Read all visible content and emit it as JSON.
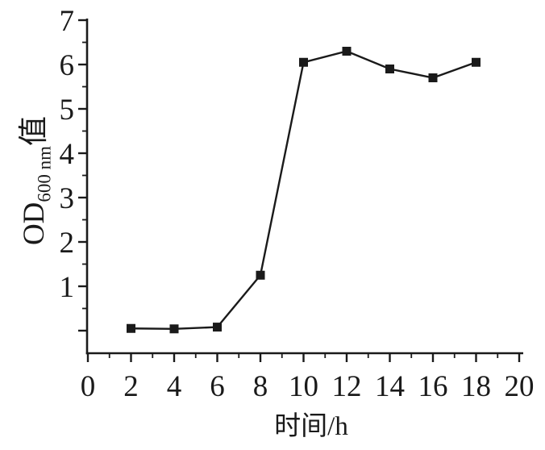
{
  "figure": {
    "background_color": "#ffffff",
    "ink_color": "#1a1a1a"
  },
  "y_axis": {
    "title_prefix": "OD",
    "title_subscript": "600 nm",
    "title_suffix": "值",
    "tick_labels": [
      "1",
      "2",
      "3",
      "4",
      "5",
      "6",
      "7"
    ]
  },
  "x_axis": {
    "title": "时间/h",
    "tick_labels": [
      "0",
      "2",
      "4",
      "6",
      "8",
      "10",
      "12",
      "14",
      "16",
      "18",
      "20"
    ]
  },
  "chart_data": {
    "type": "line",
    "title": "",
    "xlabel": "时间/h",
    "ylabel": "OD600 nm值",
    "x": [
      2,
      4,
      6,
      8,
      10,
      12,
      14,
      16,
      18
    ],
    "series": [
      {
        "name": "OD600 nm值",
        "values": [
          0.05,
          0.04,
          0.08,
          1.25,
          6.05,
          6.3,
          5.9,
          5.7,
          6.05
        ]
      }
    ],
    "marker": "filled-square",
    "line_color": "#1a1a1a",
    "marker_color": "#1a1a1a",
    "xlim": [
      0,
      20
    ],
    "ylim": [
      -0.5,
      7.1
    ],
    "x_major_ticks": [
      0,
      2,
      4,
      6,
      8,
      10,
      12,
      14,
      16,
      18,
      20
    ],
    "x_minor_ticks": [
      1,
      3,
      5,
      7,
      9,
      11,
      13,
      15,
      17,
      19
    ],
    "y_major_ticks": [
      0,
      1,
      2,
      3,
      4,
      5,
      6,
      7
    ],
    "y_minor_ticks": [
      0.5,
      1.5,
      2.5,
      3.5,
      4.5,
      5.5,
      6.5
    ],
    "y_labeled_ticks": [
      1,
      2,
      3,
      4,
      5,
      6,
      7
    ],
    "grid": false,
    "legend_position": "none"
  }
}
